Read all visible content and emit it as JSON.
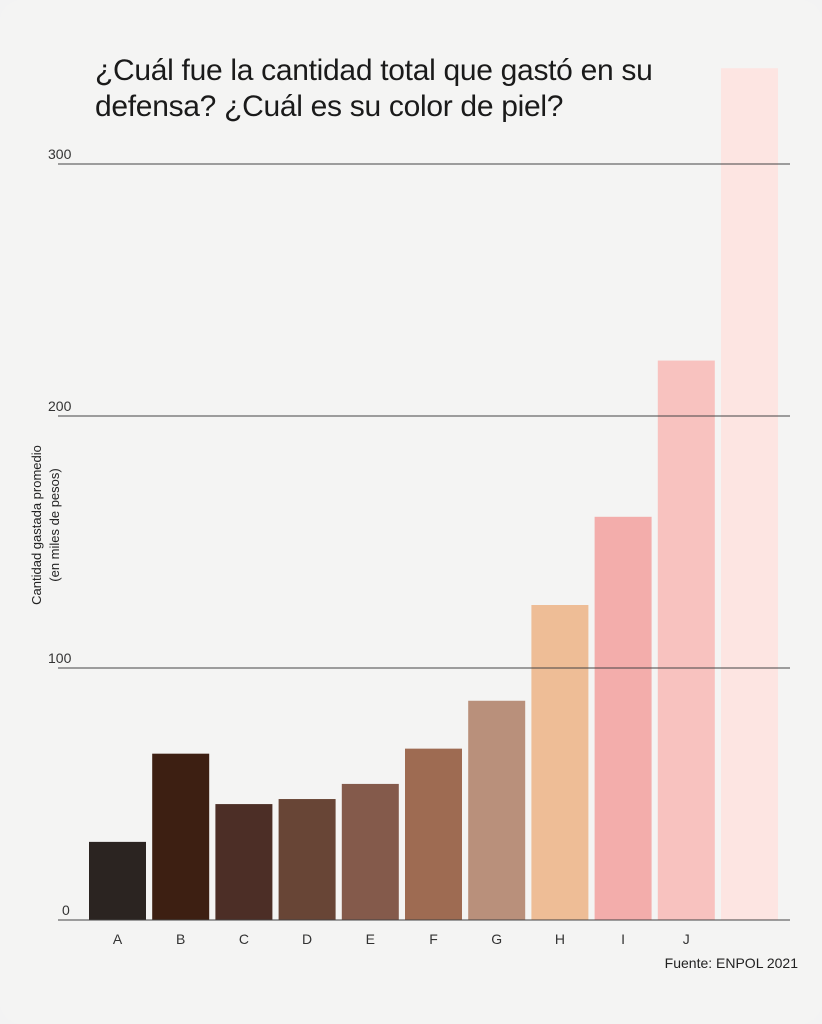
{
  "chart_data": {
    "type": "bar",
    "title": "¿Cuál fue la cantidad total que gastó en su defensa? ¿Cuál es su color de piel?",
    "ylabel": [
      "Cantidad gastada promedio",
      "(en miles de pesos)"
    ],
    "xlabel": "",
    "categories": [
      "A",
      "B",
      "C",
      "D",
      "E",
      "F",
      "G",
      "H",
      "I",
      "J",
      ""
    ],
    "values": [
      31,
      66,
      46,
      48,
      54,
      68,
      87,
      125,
      160,
      222,
      338
    ],
    "colors": [
      "#2b2421",
      "#3d1f12",
      "#4c2e26",
      "#684536",
      "#845a4b",
      "#9e6b52",
      "#b9907b",
      "#eebd96",
      "#f3adab",
      "#f8c2bf",
      "#fde5e2"
    ],
    "yticks": [
      0,
      100,
      200,
      300
    ],
    "ylim": [
      0,
      300
    ],
    "grid": true,
    "source": "Fuente: ENPOL 2021"
  }
}
